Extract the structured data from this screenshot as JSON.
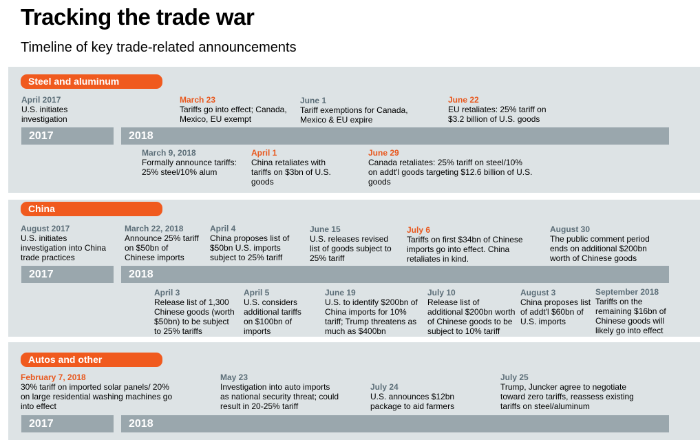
{
  "title": "Tracking the trade war",
  "subtitle": "Timeline  of key trade-related  announcements",
  "colors": {
    "accent": "#f05a1e",
    "panel": "#dde3e5",
    "bar": "#9aa7ad",
    "date_gray": "#5c6e78",
    "date_orange": "#e8581e"
  },
  "steel": {
    "label": "Steel and aluminum",
    "year_a": "2017",
    "year_b": "2018",
    "above": [
      {
        "date": "April 2017",
        "text": "U.S. initiates investigation"
      },
      {
        "date": "March 23",
        "text": "Tariffs go into effect; Canada, Mexico, EU exempt"
      },
      {
        "date": "June 1",
        "text": "Tariff exemptions for Canada, Mexico & EU expire"
      },
      {
        "date": "June 22",
        "text": "EU retaliates: 25% tariff on $3.2 billion of U.S. goods"
      }
    ],
    "below": [
      {
        "date": "March 9, 2018",
        "text": "Formally announce tariffs: 25% steel/10% alum"
      },
      {
        "date": "April 1",
        "text": "China retaliates with tariffs on $3bn of U.S. goods"
      },
      {
        "date": "June 29",
        "text": "Canada retaliates: 25% tariff on steel/10% on addt'l goods targeting $12.6 billion of U.S. goods"
      }
    ]
  },
  "china": {
    "label": "China",
    "year_a": "2017",
    "year_b": "2018",
    "above": [
      {
        "date": "August 2017",
        "text": "U.S. initiates investigation into China trade practices"
      },
      {
        "date": "March 22, 2018",
        "text": "Announce 25% tariff on $50bn of Chinese imports"
      },
      {
        "date": "April 4",
        "text": "China proposes list of $50bn U.S. imports subject to 25% tariff"
      },
      {
        "date": "June 15",
        "text": "U.S. releases revised list of goods subject to 25% tariff"
      },
      {
        "date": "July 6",
        "text": "Tariffs on first $34bn of Chinese imports go into effect. China retaliates in kind."
      },
      {
        "date": "August 30",
        "text": "The public comment period ends on additional $200bn worth of Chinese goods"
      }
    ],
    "below": [
      {
        "date": "April 3",
        "text": "Release list of 1,300 Chinese goods (worth $50bn) to be subject to 25% tariffs"
      },
      {
        "date": "April 5",
        "text": "U.S. considers additional tariffs on $100bn of imports"
      },
      {
        "date": "June 19",
        "text": "U.S. to identify $200bn of China imports for 10% tariff; Trump threatens as much as $400bn"
      },
      {
        "date": "July 10",
        "text": "Release list of additional $200bn worth of Chinese goods to be subject to 10% tariff"
      },
      {
        "date": "August 3",
        "text": "China proposes list of addt'l $60bn of U.S. imports"
      },
      {
        "date": "September 2018",
        "text": "Tariffs on the remaining $16bn of Chinese goods will likely go into effect"
      }
    ]
  },
  "autos": {
    "label": "Autos  and other",
    "year_a": "2017",
    "year_b": "2018",
    "above": [
      {
        "date": "February 7, 2018",
        "text": "30% tariff on imported solar panels/ 20% on large residential washing machines go into effect"
      },
      {
        "date": "May 23",
        "text": "Investigation into auto imports as national security threat; could result in 20-25% tariff"
      },
      {
        "date": "July 24",
        "text": "U.S. announces $12bn package to aid farmers"
      },
      {
        "date": "July 25",
        "text": "Trump, Juncker agree to negotiate toward zero tariffs, reassess existing tariffs on steel/aluminum"
      }
    ]
  }
}
